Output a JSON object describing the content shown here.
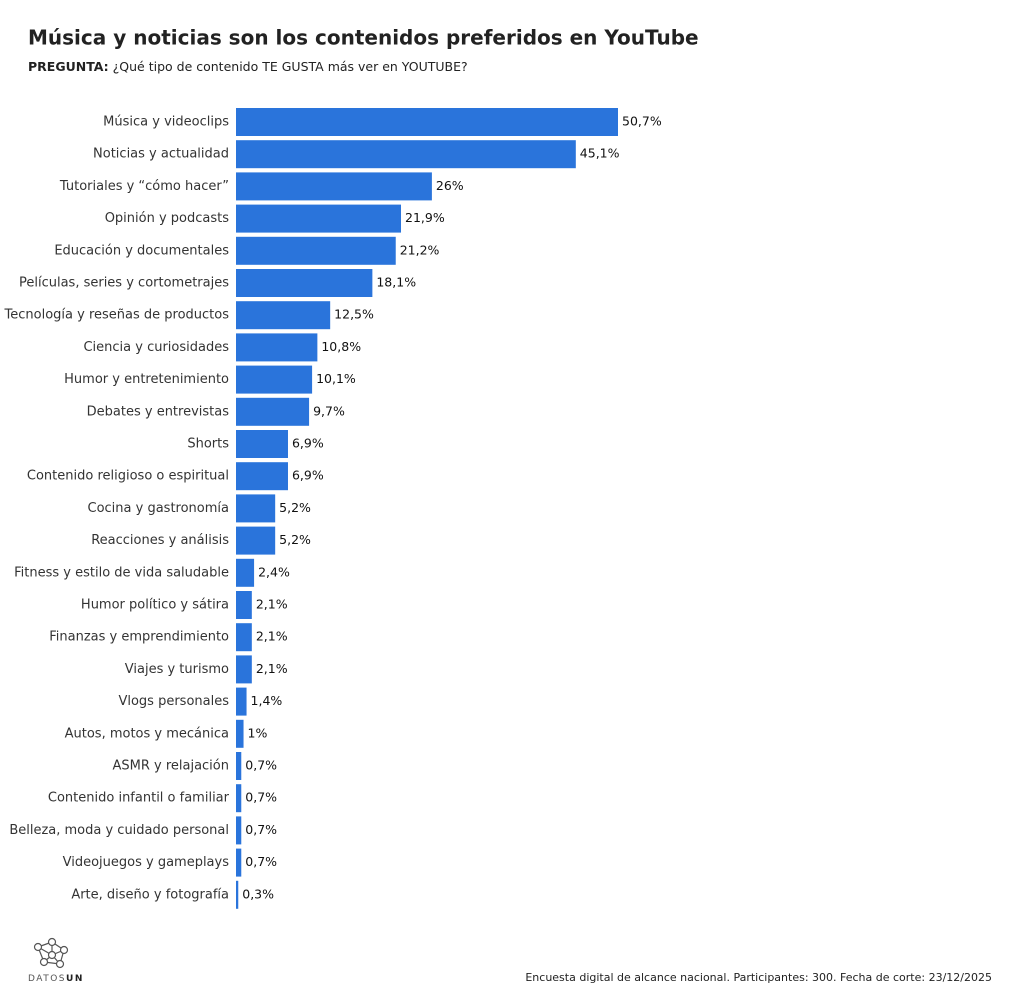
{
  "chart_data": {
    "type": "barh",
    "title": "Música y noticias son los contenidos preferidos en YouTube",
    "subtitle_lead": "PREGUNTA:",
    "subtitle": "¿Qué tipo de contenido TE GUSTA más ver en YOUTUBE?",
    "categories": [
      "Música y videoclips",
      "Noticias y actualidad",
      "Tutoriales y “cómo hacer”",
      "Opinión y podcasts",
      "Educación y documentales",
      "Películas, series y cortometrajes",
      "Tecnología y reseñas de productos",
      "Ciencia y curiosidades",
      "Humor y entretenimiento",
      "Debates y entrevistas",
      "Shorts",
      "Contenido religioso o espiritual",
      "Cocina y gastronomía",
      "Reacciones y análisis",
      "Fitness y estilo de vida saludable",
      "Humor político y sátira",
      "Finanzas y emprendimiento",
      "Viajes y turismo",
      "Vlogs personales",
      "Autos, motos y mecánica",
      "ASMR y relajación",
      "Contenido infantil o familiar",
      "Belleza, moda y cuidado personal",
      "Videojuegos y gameplays",
      "Arte, diseño y fotografía"
    ],
    "values": [
      50.7,
      45.1,
      26,
      21.9,
      21.2,
      18.1,
      12.5,
      10.8,
      10.1,
      9.7,
      6.9,
      6.9,
      5.2,
      5.2,
      2.4,
      2.1,
      2.1,
      2.1,
      1.4,
      1,
      0.7,
      0.7,
      0.7,
      0.7,
      0.3
    ],
    "value_labels": [
      "50,7%",
      "45,1%",
      "26%",
      "21,9%",
      "21,2%",
      "18,1%",
      "12,5%",
      "10,8%",
      "10,1%",
      "9,7%",
      "6,9%",
      "6,9%",
      "5,2%",
      "5,2%",
      "2,4%",
      "2,1%",
      "2,1%",
      "2,1%",
      "1,4%",
      "1%",
      "0,7%",
      "0,7%",
      "0,7%",
      "0,7%",
      "0,3%"
    ],
    "color": "#2a74db",
    "source": "Encuesta digital de alcance nacional. Participantes: 300. Fecha de corte: 23/12/2025",
    "logo": {
      "part1": "DATOS",
      "part2": "UN"
    }
  }
}
